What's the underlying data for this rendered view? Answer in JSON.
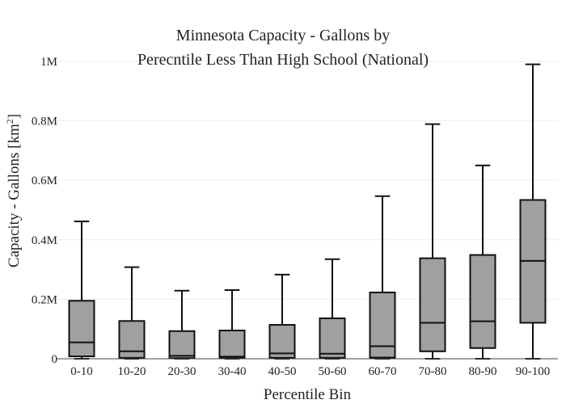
{
  "chart_data": {
    "type": "box",
    "title_line1": "Minnesota Capacity - Gallons by",
    "title_line2": "Perecntile Less Than High School (National)",
    "xlabel": "Percentile Bin",
    "ylabel_main": "Capacity - Gallons  [km",
    "ylabel_sup": "2",
    "ylabel_end": "]",
    "ylim": [
      0,
      1000000
    ],
    "y_ticks": [
      {
        "value": 0,
        "label": "0"
      },
      {
        "value": 200000,
        "label": "0.2M"
      },
      {
        "value": 400000,
        "label": "0.4M"
      },
      {
        "value": 600000,
        "label": "0.6M"
      },
      {
        "value": 800000,
        "label": "0.8M"
      },
      {
        "value": 1000000,
        "label": "1M"
      }
    ],
    "grid": true,
    "box_color": "#a0a0a0",
    "categories": [
      "0-10",
      "10-20",
      "20-30",
      "30-40",
      "40-50",
      "50-60",
      "60-70",
      "70-80",
      "80-90",
      "90-100"
    ],
    "boxes": [
      {
        "min": 0,
        "q1": 8000,
        "median": 55000,
        "q3": 195000,
        "max": 462000
      },
      {
        "min": 0,
        "q1": 3000,
        "median": 25000,
        "q3": 127000,
        "max": 308000
      },
      {
        "min": 0,
        "q1": 2000,
        "median": 10000,
        "q3": 93000,
        "max": 229000
      },
      {
        "min": 0,
        "q1": 2000,
        "median": 7000,
        "q3": 95000,
        "max": 231000
      },
      {
        "min": 0,
        "q1": 3000,
        "median": 18000,
        "q3": 114000,
        "max": 283000
      },
      {
        "min": 0,
        "q1": 3000,
        "median": 17000,
        "q3": 136000,
        "max": 335000
      },
      {
        "min": 0,
        "q1": 4000,
        "median": 42000,
        "q3": 223000,
        "max": 547000
      },
      {
        "min": 0,
        "q1": 25000,
        "median": 121000,
        "q3": 338000,
        "max": 789000
      },
      {
        "min": 0,
        "q1": 36000,
        "median": 126000,
        "q3": 349000,
        "max": 650000
      },
      {
        "min": 0,
        "q1": 121000,
        "median": 329000,
        "q3": 534000,
        "max": 990000
      }
    ]
  }
}
